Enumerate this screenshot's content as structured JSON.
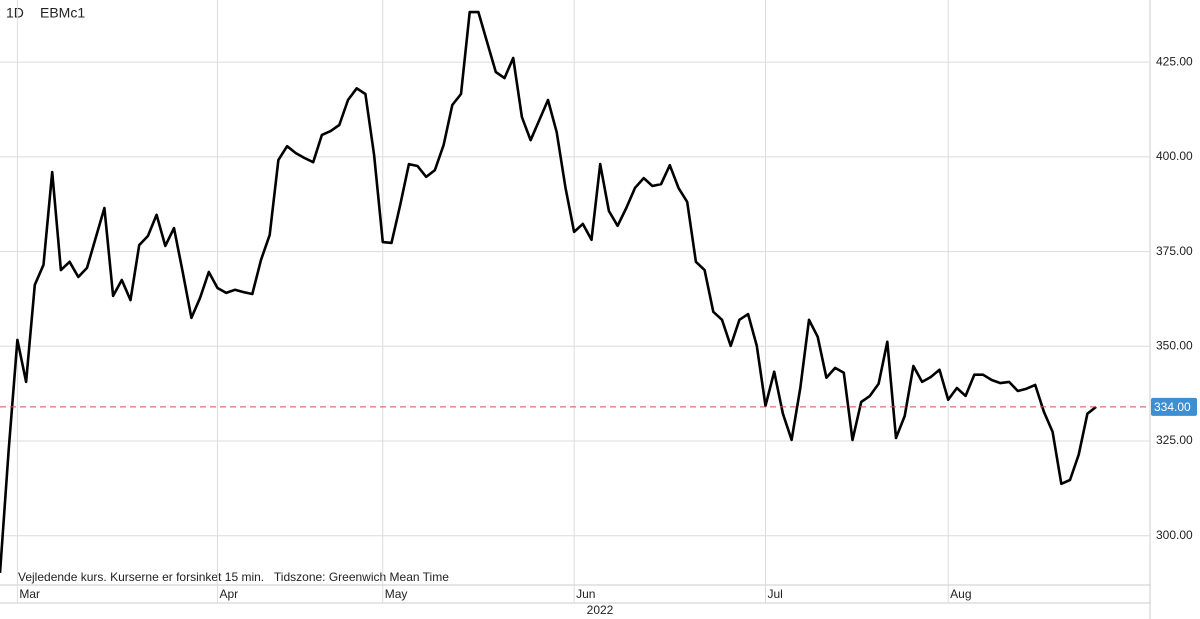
{
  "chart_data": {
    "type": "line",
    "interval": "1D",
    "symbol": "EBMc1",
    "note": "Vejledende kurs. Kurserne er forsinket 15 min.   Tidszone: Greenwich Mean Time",
    "year_label": "2022",
    "color": "#000000",
    "values": [
      290.2,
      322.7,
      351.7,
      340.6,
      366.2,
      371.5,
      396.0,
      370.1,
      372.3,
      368.3,
      370.7,
      378.6,
      386.5,
      363.3,
      367.5,
      362.2,
      376.7,
      379.1,
      384.7,
      376.5,
      381.2,
      369.6,
      357.5,
      362.8,
      369.6,
      365.4,
      364.1,
      364.9,
      364.3,
      363.8,
      372.8,
      379.4,
      399.2,
      402.8,
      401.0,
      399.7,
      398.6,
      405.8,
      406.8,
      408.4,
      415.0,
      418.1,
      416.6,
      400.5,
      377.5,
      377.3,
      387.3,
      398.1,
      397.6,
      394.7,
      396.5,
      403.1,
      413.7,
      416.6,
      438.2,
      438.2,
      430.3,
      422.4,
      420.8,
      426.1,
      410.5,
      404.4,
      409.7,
      415.0,
      406.5,
      392.0,
      380.2,
      382.3,
      378.1,
      398.1,
      385.7,
      381.8,
      386.5,
      391.8,
      394.4,
      392.3,
      392.8,
      397.8,
      391.8,
      388.1,
      372.3,
      370.1,
      359.1,
      357.0,
      350.1,
      357.0,
      358.5,
      350.1,
      334.3,
      343.3,
      332.2,
      325.3,
      339.0,
      357.0,
      352.5,
      341.7,
      344.3,
      343.0,
      325.3,
      335.3,
      336.9,
      340.1,
      351.2,
      325.8,
      331.6,
      344.8,
      340.6,
      341.9,
      343.8,
      335.9,
      339.0,
      336.9,
      342.5,
      342.5,
      341.1,
      340.3,
      340.6,
      338.2,
      338.8,
      339.8,
      332.7,
      327.4,
      313.7,
      314.7,
      321.4,
      332.2,
      334.0
    ],
    "last_value": {
      "value": 334,
      "label": "334.00"
    },
    "xlim": [
      0,
      132.2
    ],
    "xticks": [
      {
        "value": 2,
        "label": "Mar"
      },
      {
        "value": 25,
        "label": "Apr"
      },
      {
        "value": 44,
        "label": "May"
      },
      {
        "value": 66,
        "label": "Jun"
      },
      {
        "value": 88,
        "label": "Jul"
      },
      {
        "value": 109,
        "label": "Aug"
      }
    ],
    "ylim": [
      287,
      441.4
    ],
    "yticks": [
      {
        "value": 300,
        "label": "300.00"
      },
      {
        "value": 325,
        "label": "325.00"
      },
      {
        "value": 350,
        "label": "350.00"
      },
      {
        "value": 375,
        "label": "375.00"
      },
      {
        "value": 400,
        "label": "400.00"
      },
      {
        "value": 425,
        "label": "425.00"
      }
    ],
    "grid": true
  }
}
